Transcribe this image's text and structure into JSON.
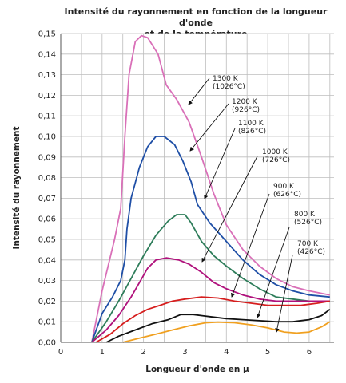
{
  "chart_data": {
    "type": "line",
    "title_line1": "Intensité du rayonnement en fonction de la longueur d'onde",
    "title_line2": "et de la température",
    "xlabel": "Longueur d'onde en μ",
    "ylabel": "Intensité du rayonnement",
    "xlim": [
      0,
      6.6
    ],
    "ylim": [
      0,
      0.15
    ],
    "xticks": [
      "0",
      "1",
      "2",
      "3",
      "4",
      "5",
      "6"
    ],
    "yticks": [
      "0,00",
      "0,01",
      "0,02",
      "0,03",
      "0,04",
      "0,05",
      "0,06",
      "0,07",
      "0,08",
      "0,09",
      "0,10",
      "0,11",
      "0,12",
      "0,13",
      "0,14",
      "0,15"
    ],
    "grid": true,
    "series": [
      {
        "color": "#d970b8",
        "label_line1": "1300 K",
        "label_line2": "(1026°C)",
        "points": [
          [
            0.75,
            0
          ],
          [
            1.0,
            0.025
          ],
          [
            1.3,
            0.05
          ],
          [
            1.45,
            0.065
          ],
          [
            1.55,
            0.1
          ],
          [
            1.65,
            0.13
          ],
          [
            1.8,
            0.146
          ],
          [
            1.95,
            0.149
          ],
          [
            2.1,
            0.148
          ],
          [
            2.35,
            0.14
          ],
          [
            2.55,
            0.125
          ],
          [
            2.8,
            0.118
          ],
          [
            3.1,
            0.107
          ],
          [
            3.4,
            0.09
          ],
          [
            3.7,
            0.072
          ],
          [
            4.0,
            0.057
          ],
          [
            4.4,
            0.045
          ],
          [
            4.8,
            0.037
          ],
          [
            5.2,
            0.031
          ],
          [
            5.6,
            0.027
          ],
          [
            6.0,
            0.025
          ],
          [
            6.5,
            0.023
          ]
        ]
      },
      {
        "color": "#1f4fa6",
        "label_line1": "1200 K",
        "label_line2": "(926°C)",
        "points": [
          [
            0.75,
            0
          ],
          [
            1.0,
            0.014
          ],
          [
            1.25,
            0.022
          ],
          [
            1.45,
            0.03
          ],
          [
            1.55,
            0.04
          ],
          [
            1.6,
            0.055
          ],
          [
            1.7,
            0.07
          ],
          [
            1.9,
            0.085
          ],
          [
            2.1,
            0.095
          ],
          [
            2.3,
            0.1
          ],
          [
            2.5,
            0.1
          ],
          [
            2.75,
            0.096
          ],
          [
            2.95,
            0.088
          ],
          [
            3.15,
            0.078
          ],
          [
            3.3,
            0.067
          ],
          [
            3.6,
            0.058
          ],
          [
            4.0,
            0.049
          ],
          [
            4.4,
            0.04
          ],
          [
            4.8,
            0.033
          ],
          [
            5.2,
            0.028
          ],
          [
            5.6,
            0.025
          ],
          [
            6.0,
            0.023
          ],
          [
            6.5,
            0.022
          ]
        ]
      },
      {
        "color": "#2e7d5a",
        "label_line1": "1100 K",
        "label_line2": "(826°C)",
        "points": [
          [
            0.75,
            0
          ],
          [
            1.1,
            0.01
          ],
          [
            1.4,
            0.02
          ],
          [
            1.7,
            0.031
          ],
          [
            2.0,
            0.042
          ],
          [
            2.3,
            0.052
          ],
          [
            2.6,
            0.059
          ],
          [
            2.8,
            0.062
          ],
          [
            3.0,
            0.062
          ],
          [
            3.15,
            0.058
          ],
          [
            3.4,
            0.049
          ],
          [
            3.7,
            0.042
          ],
          [
            4.0,
            0.037
          ],
          [
            4.4,
            0.031
          ],
          [
            4.8,
            0.026
          ],
          [
            5.2,
            0.022
          ],
          [
            5.6,
            0.021
          ],
          [
            6.0,
            0.02
          ],
          [
            6.5,
            0.02
          ]
        ]
      },
      {
        "color": "#b0117c",
        "label_line1": "1000 K",
        "label_line2": "(726°C)",
        "points": [
          [
            0.75,
            0
          ],
          [
            1.1,
            0.006
          ],
          [
            1.4,
            0.013
          ],
          [
            1.7,
            0.022
          ],
          [
            1.9,
            0.029
          ],
          [
            2.1,
            0.036
          ],
          [
            2.3,
            0.04
          ],
          [
            2.55,
            0.041
          ],
          [
            2.85,
            0.04
          ],
          [
            3.1,
            0.038
          ],
          [
            3.4,
            0.034
          ],
          [
            3.7,
            0.029
          ],
          [
            4.0,
            0.026
          ],
          [
            4.4,
            0.023
          ],
          [
            4.8,
            0.021
          ],
          [
            5.2,
            0.02
          ],
          [
            5.6,
            0.02
          ],
          [
            6.0,
            0.02
          ],
          [
            6.5,
            0.02
          ]
        ]
      },
      {
        "color": "#d61e1e",
        "label_line1": "900 K",
        "label_line2": "(626°C)",
        "points": [
          [
            0.85,
            0
          ],
          [
            1.2,
            0.004
          ],
          [
            1.5,
            0.009
          ],
          [
            1.8,
            0.013
          ],
          [
            2.1,
            0.016
          ],
          [
            2.4,
            0.018
          ],
          [
            2.7,
            0.02
          ],
          [
            3.0,
            0.021
          ],
          [
            3.4,
            0.022
          ],
          [
            3.8,
            0.0215
          ],
          [
            4.2,
            0.02
          ],
          [
            4.6,
            0.019
          ],
          [
            5.0,
            0.018
          ],
          [
            5.4,
            0.018
          ],
          [
            5.8,
            0.018
          ],
          [
            6.2,
            0.019
          ],
          [
            6.5,
            0.02
          ]
        ]
      },
      {
        "color": "#111111",
        "label_line1": "800 K",
        "label_line2": "(526°C)",
        "points": [
          [
            1.1,
            0
          ],
          [
            1.4,
            0.003
          ],
          [
            1.8,
            0.006
          ],
          [
            2.2,
            0.009
          ],
          [
            2.6,
            0.011
          ],
          [
            2.9,
            0.0135
          ],
          [
            3.2,
            0.0135
          ],
          [
            3.6,
            0.0125
          ],
          [
            4.0,
            0.0115
          ],
          [
            4.4,
            0.011
          ],
          [
            4.8,
            0.0105
          ],
          [
            5.2,
            0.01
          ],
          [
            5.6,
            0.01
          ],
          [
            6.0,
            0.011
          ],
          [
            6.3,
            0.013
          ],
          [
            6.5,
            0.016
          ]
        ]
      },
      {
        "color": "#f0a020",
        "label_line1": "700 K",
        "label_line2": "(426°C)",
        "points": [
          [
            1.5,
            0
          ],
          [
            1.9,
            0.002
          ],
          [
            2.3,
            0.004
          ],
          [
            2.7,
            0.006
          ],
          [
            3.1,
            0.008
          ],
          [
            3.5,
            0.0095
          ],
          [
            3.8,
            0.0098
          ],
          [
            4.2,
            0.0095
          ],
          [
            4.6,
            0.0085
          ],
          [
            5.0,
            0.007
          ],
          [
            5.4,
            0.005
          ],
          [
            5.7,
            0.0045
          ],
          [
            6.0,
            0.005
          ],
          [
            6.3,
            0.0075
          ],
          [
            6.5,
            0.01
          ]
        ]
      }
    ]
  }
}
